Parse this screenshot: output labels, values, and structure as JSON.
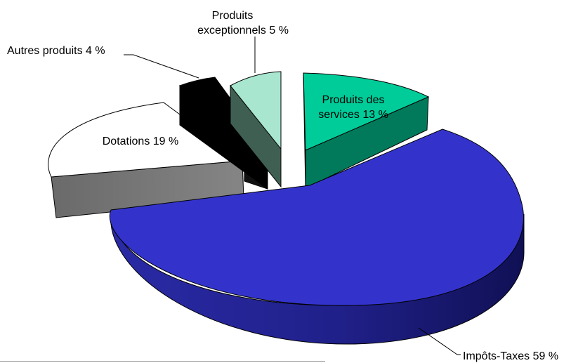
{
  "chart_data": {
    "type": "pie",
    "three_d": true,
    "exploded": true,
    "title": "",
    "unit": "%",
    "slices": [
      {
        "name": "Impôts-Taxes",
        "label": "Impôts-Taxes  59 %",
        "value": 59,
        "color": "#3333cc"
      },
      {
        "name": "Dotations",
        "label": "Dotations  19 %",
        "value": 19,
        "color": "#ffffff"
      },
      {
        "name": "Autres produits",
        "label": "Autres produits  4 %",
        "value": 4,
        "color": "#000000"
      },
      {
        "name": "Produits exceptionnels",
        "label_line1": "Produits",
        "label_line2": "exceptionnels  5 %",
        "value": 5,
        "color": "#a8e6cf"
      },
      {
        "name": "Produits des services",
        "label_line1": "Produits des",
        "label_line2": "services  13 %",
        "value": 13,
        "color": "#00cc99"
      }
    ]
  }
}
